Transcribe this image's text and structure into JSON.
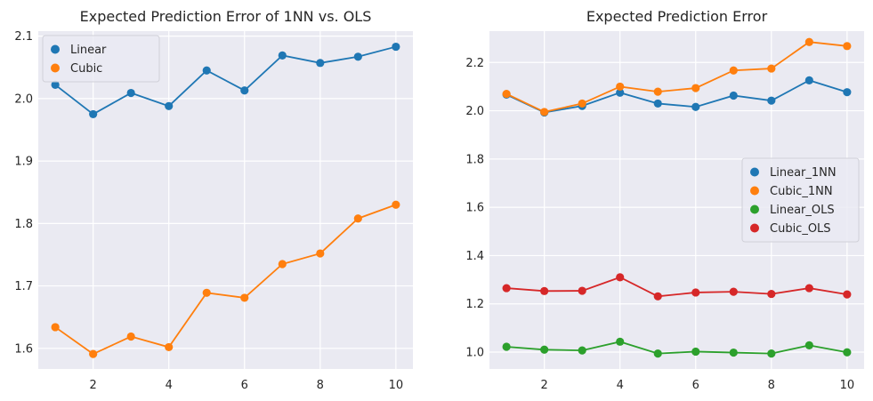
{
  "chart_data": [
    {
      "type": "line",
      "title": "Expected Prediction Error of 1NN vs. OLS",
      "xlabel": "",
      "ylabel": "",
      "x": [
        1,
        2,
        3,
        4,
        5,
        6,
        7,
        8,
        9,
        10
      ],
      "xlim": [
        0.55,
        10.45
      ],
      "ylim": [
        1.567,
        2.108
      ],
      "xticks": [
        2,
        4,
        6,
        8,
        10
      ],
      "yticks": [
        1.6,
        1.7,
        1.8,
        1.9,
        2.0,
        2.1
      ],
      "ytick_labels": [
        "1.6",
        "1.7",
        "1.8",
        "1.9",
        "2.0",
        "2.1"
      ],
      "grid": true,
      "legend_position": "upper-left",
      "series": [
        {
          "name": "Linear",
          "color": "#1f77b4",
          "values": [
            2.022,
            1.975,
            2.009,
            1.988,
            2.045,
            2.013,
            2.069,
            2.057,
            2.067,
            2.083
          ]
        },
        {
          "name": "Cubic",
          "color": "#ff7f0e",
          "values": [
            1.634,
            1.591,
            1.619,
            1.602,
            1.689,
            1.681,
            1.735,
            1.752,
            1.808,
            1.83
          ]
        }
      ]
    },
    {
      "type": "line",
      "title": "Expected Prediction Error",
      "xlabel": "",
      "ylabel": "",
      "x": [
        1,
        2,
        3,
        4,
        5,
        6,
        7,
        8,
        9,
        10
      ],
      "xlim": [
        0.55,
        10.45
      ],
      "ylim": [
        0.93,
        2.33
      ],
      "xticks": [
        2,
        4,
        6,
        8,
        10
      ],
      "yticks": [
        1.0,
        1.2,
        1.4,
        1.6,
        1.8,
        2.0,
        2.2
      ],
      "ytick_labels": [
        "1.0",
        "1.2",
        "1.4",
        "1.6",
        "1.8",
        "2.0",
        "2.2"
      ],
      "grid": true,
      "legend_position": "center-right",
      "series": [
        {
          "name": "Linear_1NN",
          "color": "#1f77b4",
          "values": [
            2.067,
            1.993,
            2.02,
            2.075,
            2.03,
            2.016,
            2.063,
            2.042,
            2.126,
            2.077
          ]
        },
        {
          "name": "Cubic_1NN",
          "color": "#ff7f0e",
          "values": [
            2.07,
            1.995,
            2.03,
            2.1,
            2.079,
            2.094,
            2.167,
            2.175,
            2.285,
            2.268
          ]
        },
        {
          "name": "Linear_OLS",
          "color": "#2ca02c",
          "values": [
            1.022,
            1.01,
            1.007,
            1.043,
            0.994,
            1.002,
            0.998,
            0.994,
            1.028,
            0.999
          ]
        },
        {
          "name": "Cubic_OLS",
          "color": "#d62728",
          "values": [
            1.265,
            1.253,
            1.254,
            1.31,
            1.231,
            1.247,
            1.25,
            1.241,
            1.265,
            1.239
          ]
        }
      ]
    }
  ]
}
